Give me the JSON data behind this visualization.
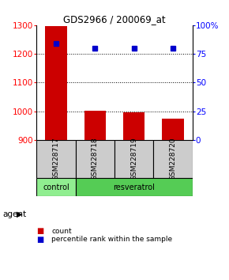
{
  "title": "GDS2966 / 200069_at",
  "samples": [
    "GSM228717",
    "GSM228718",
    "GSM228719",
    "GSM228720"
  ],
  "bar_values": [
    1296,
    1001,
    997,
    975
  ],
  "percentile_values": [
    84,
    80,
    80,
    80
  ],
  "ylim_left": [
    900,
    1300
  ],
  "ylim_right": [
    0,
    100
  ],
  "yticks_left": [
    900,
    1000,
    1100,
    1200,
    1300
  ],
  "yticks_right": [
    0,
    25,
    50,
    75,
    100
  ],
  "bar_color": "#cc0000",
  "percentile_color": "#0000cc",
  "bar_width": 0.55,
  "agent_colors_ctrl": "#90ee90",
  "agent_colors_res": "#55cc55",
  "group_bg_color": "#cccccc",
  "legend_items": [
    {
      "label": "count",
      "color": "#cc0000"
    },
    {
      "label": "percentile rank within the sample",
      "color": "#0000cc"
    }
  ]
}
